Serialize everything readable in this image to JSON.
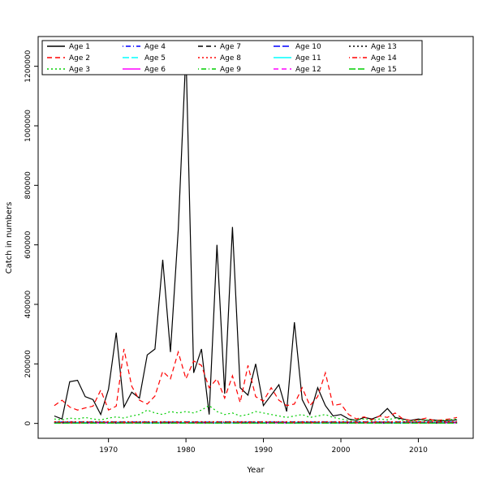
{
  "chart_data": {
    "type": "line",
    "title": "",
    "xlabel": "Year",
    "ylabel": "Catch in numbers",
    "xlim": [
      1963,
      2015
    ],
    "ylim": [
      0,
      1250000
    ],
    "x_ticks": [
      1970,
      1980,
      1990,
      2000,
      2010
    ],
    "y_ticks": [
      0,
      200000,
      400000,
      600000,
      800000,
      1000000,
      1200000
    ],
    "grid": false,
    "legend_position": "top-left-inside",
    "legend_columns": 5,
    "x": [
      1963,
      1964,
      1965,
      1966,
      1967,
      1968,
      1969,
      1970,
      1971,
      1972,
      1973,
      1974,
      1975,
      1976,
      1977,
      1978,
      1979,
      1980,
      1981,
      1982,
      1983,
      1984,
      1985,
      1986,
      1987,
      1988,
      1989,
      1990,
      1991,
      1992,
      1993,
      1994,
      1995,
      1996,
      1997,
      1998,
      1999,
      2000,
      2001,
      2002,
      2003,
      2004,
      2005,
      2006,
      2007,
      2008,
      2009,
      2010,
      2011,
      2012,
      2013,
      2014,
      2015
    ],
    "series": [
      {
        "name": "Age 1",
        "color": "#000000",
        "linetype": "solid",
        "values": [
          25000,
          15000,
          140000,
          145000,
          90000,
          80000,
          30000,
          115000,
          305000,
          55000,
          105000,
          85000,
          230000,
          250000,
          550000,
          240000,
          650000,
          1250000,
          170000,
          250000,
          30000,
          600000,
          100000,
          660000,
          120000,
          95000,
          200000,
          60000,
          95000,
          130000,
          40000,
          340000,
          80000,
          30000,
          120000,
          60000,
          25000,
          30000,
          15000,
          10000,
          20000,
          15000,
          25000,
          50000,
          20000,
          15000,
          10000,
          15000,
          10000,
          12000,
          8000,
          10000,
          12000
        ]
      },
      {
        "name": "Age 2",
        "color": "#FF0000",
        "linetype": "dashed",
        "values": [
          60000,
          78000,
          55000,
          45000,
          52000,
          58000,
          112000,
          45000,
          58000,
          250000,
          125000,
          78000,
          65000,
          92000,
          175000,
          150000,
          240000,
          150000,
          210000,
          195000,
          120000,
          150000,
          85000,
          160000,
          70000,
          195000,
          90000,
          75000,
          120000,
          78000,
          60000,
          65000,
          120000,
          60000,
          90000,
          170000,
          60000,
          65000,
          30000,
          15000,
          22000,
          12000,
          25000,
          20000,
          35000,
          15000,
          10000,
          12000,
          18000,
          10000,
          12000,
          15000,
          20000
        ]
      },
      {
        "name": "Age 3",
        "color": "#00CD00",
        "linetype": "dotted",
        "values": [
          15000,
          12000,
          18000,
          15000,
          20000,
          15000,
          12000,
          18000,
          22000,
          18000,
          25000,
          30000,
          45000,
          35000,
          30000,
          40000,
          35000,
          40000,
          35000,
          45000,
          60000,
          40000,
          30000,
          35000,
          25000,
          30000,
          40000,
          35000,
          30000,
          25000,
          20000,
          25000,
          30000,
          20000,
          25000,
          30000,
          20000,
          15000,
          10000,
          12000,
          15000,
          10000,
          15000,
          12000,
          18000,
          10000,
          8000,
          10000,
          12000,
          8000,
          10000,
          12000,
          15000
        ]
      },
      {
        "name": "Age 4",
        "color": "#0000FF",
        "linetype": "dotdash",
        "constant": 5000
      },
      {
        "name": "Age 5",
        "color": "#00FFFF",
        "linetype": "longdash",
        "constant": 3500
      },
      {
        "name": "Age 6",
        "color": "#FF00FF",
        "linetype": "solid",
        "constant": 2500
      },
      {
        "name": "Age 7",
        "color": "#000000",
        "linetype": "dashed",
        "constant": 4000
      },
      {
        "name": "Age 8",
        "color": "#FF0000",
        "linetype": "dotted",
        "constant": 6000
      },
      {
        "name": "Age 9",
        "color": "#00CD00",
        "linetype": "dotdash",
        "constant": 3000
      },
      {
        "name": "Age 10",
        "color": "#0000FF",
        "linetype": "longdash",
        "constant": 2000
      },
      {
        "name": "Age 11",
        "color": "#00FFFF",
        "linetype": "solid",
        "constant": 1500
      },
      {
        "name": "Age 12",
        "color": "#FF00FF",
        "linetype": "dashed",
        "constant": 1800
      },
      {
        "name": "Age 13",
        "color": "#000000",
        "linetype": "dotted",
        "constant": 1200
      },
      {
        "name": "Age 14",
        "color": "#FF0000",
        "linetype": "dotdash",
        "constant": 2200
      },
      {
        "name": "Age 15",
        "color": "#00CD00",
        "linetype": "longdash",
        "constant": 1000
      }
    ]
  }
}
